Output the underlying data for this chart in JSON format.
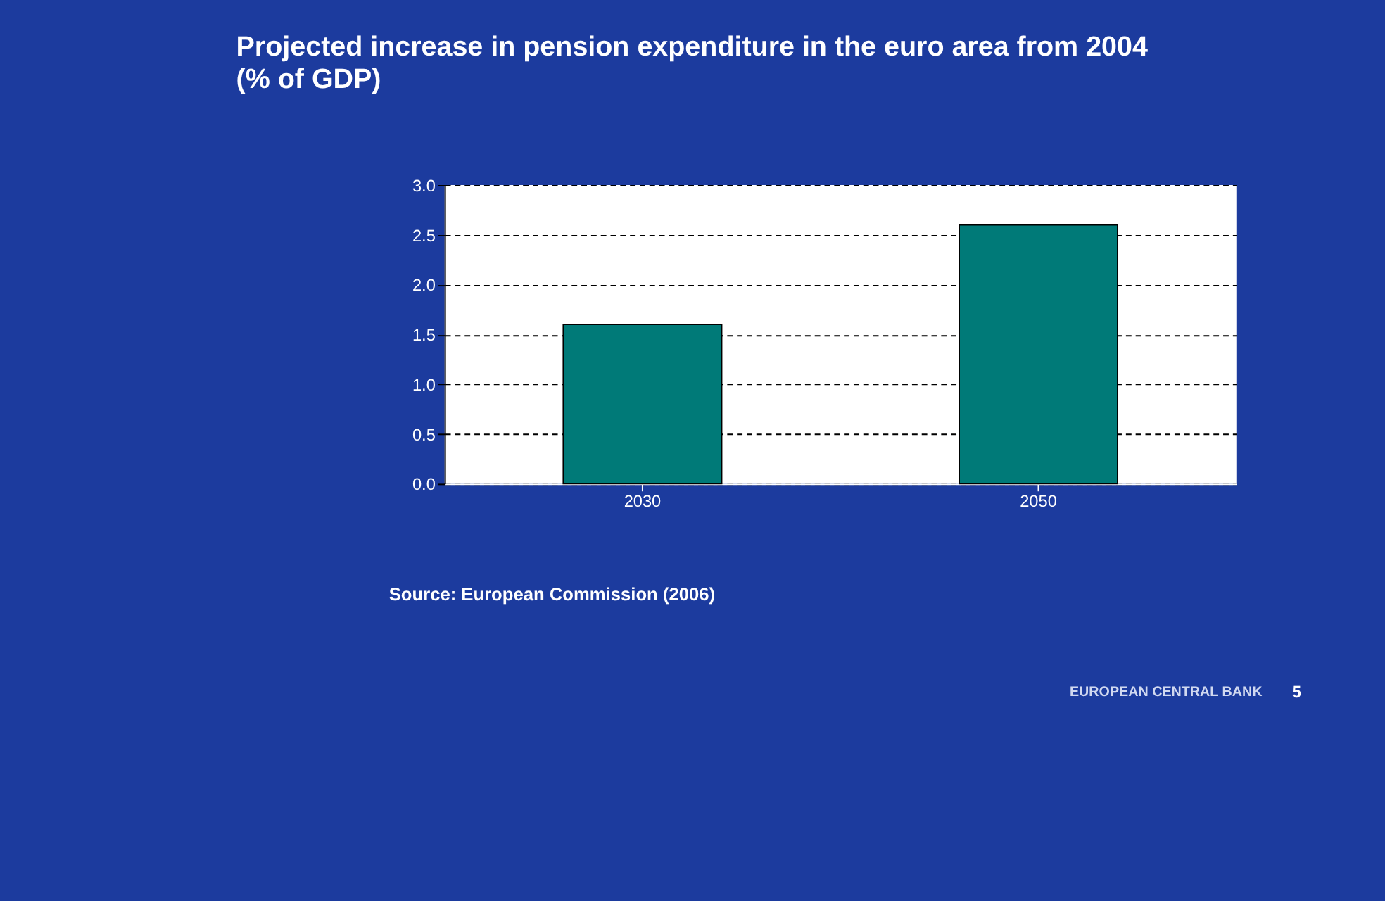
{
  "chart_data": {
    "type": "bar",
    "title": "Projected increase in pension expenditure in the euro area from 2004",
    "subtitle": "(% of GDP)",
    "categories": [
      "2030",
      "2050"
    ],
    "values": [
      1.6,
      2.6
    ],
    "color": "#007a78",
    "ylim": [
      0,
      3.0
    ],
    "yticks": [
      {
        "value": 0,
        "label": "0.0"
      },
      {
        "value": 0.5,
        "label": "0.5"
      },
      {
        "value": 1,
        "label": "1.0"
      },
      {
        "value": 1.5,
        "label": "1.5"
      },
      {
        "value": 2,
        "label": "2.0"
      },
      {
        "value": 2.5,
        "label": "2.5"
      },
      {
        "value": 3,
        "label": "3.0"
      }
    ],
    "grid": "y",
    "annotations": [
      "Source: European Commission (2006)",
      "EUROPEAN CENTRAL BANK",
      "5"
    ]
  }
}
